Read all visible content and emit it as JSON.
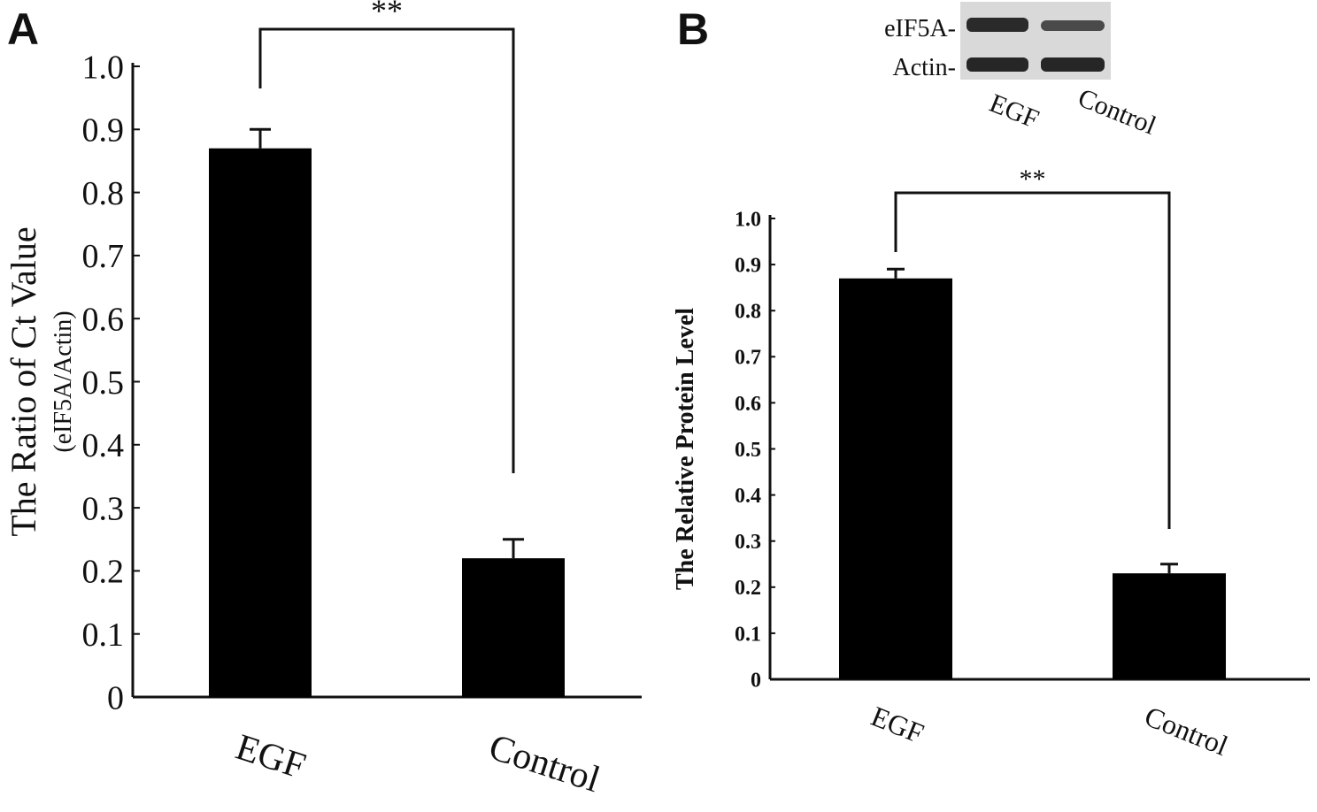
{
  "panels": {
    "a": {
      "letter": "A"
    },
    "b": {
      "letter": "B"
    }
  },
  "blot": {
    "row_labels": [
      "eIF5A-",
      "Actin-"
    ],
    "lane_labels": [
      "EGF",
      "Control"
    ]
  },
  "chart_data": [
    {
      "type": "bar",
      "panel": "A",
      "title": "",
      "categories": [
        "EGF",
        "Control"
      ],
      "values": [
        0.87,
        0.22
      ],
      "errors": [
        0.03,
        0.03
      ],
      "ylabel": "The Ratio of Ct Value",
      "ylabel_sub": "(eIF5A/Actin)",
      "xlabel": "",
      "ylim": [
        0,
        1.0
      ],
      "yticks": [
        "0",
        "0.1",
        "0.2",
        "0.3",
        "0.4",
        "0.5",
        "0.6",
        "0.7",
        "0.8",
        "0.9",
        "1.0"
      ],
      "significance": "**",
      "bar_color": "#000000",
      "grid": false
    },
    {
      "type": "bar",
      "panel": "B",
      "title": "",
      "categories": [
        "EGF",
        "Control"
      ],
      "values": [
        0.87,
        0.23
      ],
      "errors": [
        0.02,
        0.02
      ],
      "ylabel": "The Relative Protein Level",
      "xlabel": "",
      "ylim": [
        0,
        1.0
      ],
      "yticks": [
        "0",
        "0.1",
        "0.2",
        "0.3",
        "0.4",
        "0.5",
        "0.6",
        "0.7",
        "0.8",
        "0.9",
        "1.0"
      ],
      "significance": "**",
      "bar_color": "#000000",
      "grid": false
    }
  ]
}
